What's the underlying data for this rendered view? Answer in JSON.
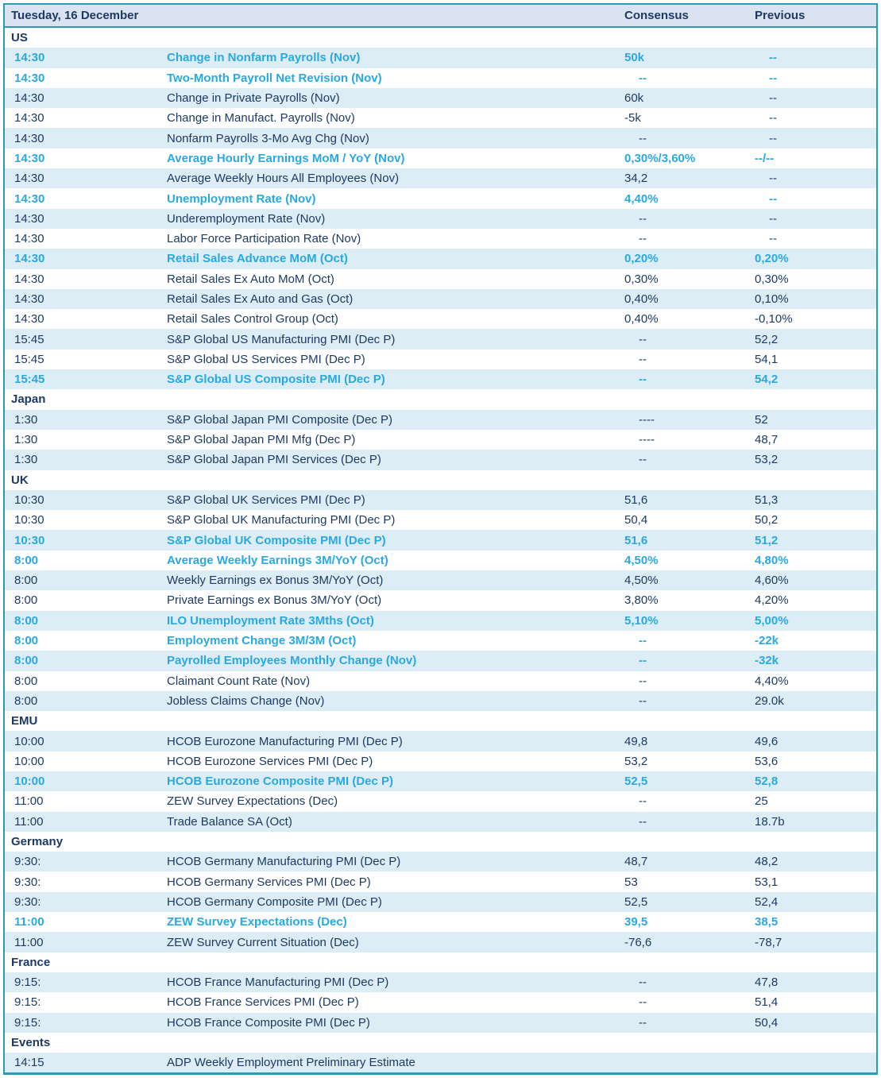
{
  "header": {
    "title": "Tuesday, 16 December",
    "consensus_label": "Consensus",
    "previous_label": "Previous"
  },
  "colors": {
    "text_navy": "#1e3a63",
    "highlight_cyan": "#2aa9e0",
    "border_teal": "#2c9ab5",
    "stripe_blue": "#dcedf5",
    "header_bg": "#dae3f0"
  },
  "sections": [
    {
      "name": "US",
      "rows": [
        {
          "time": "14:30",
          "event": "Change in Nonfarm Payrolls (Nov)",
          "consensus": "50k",
          "previous": "--",
          "highlight": true
        },
        {
          "time": "14:30",
          "event": "Two-Month Payroll Net Revision (Nov)",
          "consensus": "--",
          "previous": "--",
          "highlight": true
        },
        {
          "time": "14:30",
          "event": "Change in Private Payrolls (Nov)",
          "consensus": "60k",
          "previous": "--",
          "highlight": false
        },
        {
          "time": "14:30",
          "event": "Change in Manufact. Payrolls (Nov)",
          "consensus": "-5k",
          "previous": "--",
          "highlight": false
        },
        {
          "time": "14:30",
          "event": "Nonfarm Payrolls 3-Mo Avg Chg (Nov)",
          "consensus": "--",
          "previous": "--",
          "highlight": false
        },
        {
          "time": "14:30",
          "event": "Average Hourly Earnings MoM / YoY (Nov)",
          "consensus": "0,30%/3,60%",
          "previous": "--/--",
          "highlight": true
        },
        {
          "time": "14:30",
          "event": "Average Weekly Hours All Employees (Nov)",
          "consensus": "34,2",
          "previous": "--",
          "highlight": false
        },
        {
          "time": "14:30",
          "event": "Unemployment Rate (Nov)",
          "consensus": "4,40%",
          "previous": "--",
          "highlight": true
        },
        {
          "time": "14:30",
          "event": "Underemployment Rate (Nov)",
          "consensus": "--",
          "previous": "--",
          "highlight": false
        },
        {
          "time": "14:30",
          "event": "Labor Force Participation Rate (Nov)",
          "consensus": "--",
          "previous": "--",
          "highlight": false
        },
        {
          "time": "14:30",
          "event": "Retail Sales Advance MoM (Oct)",
          "consensus": "0,20%",
          "previous": "0,20%",
          "highlight": true
        },
        {
          "time": "14:30",
          "event": "Retail Sales Ex Auto MoM (Oct)",
          "consensus": "0,30%",
          "previous": "0,30%",
          "highlight": false
        },
        {
          "time": "14:30",
          "event": "Retail Sales Ex Auto and Gas (Oct)",
          "consensus": "0,40%",
          "previous": "0,10%",
          "highlight": false
        },
        {
          "time": "14:30",
          "event": "Retail Sales Control Group (Oct)",
          "consensus": "0,40%",
          "previous": "-0,10%",
          "highlight": false
        },
        {
          "time": "15:45",
          "event": "S&P Global US Manufacturing PMI (Dec P)",
          "consensus": "--",
          "previous": "52,2",
          "highlight": false
        },
        {
          "time": "15:45",
          "event": "S&P Global US Services PMI (Dec P)",
          "consensus": "--",
          "previous": "54,1",
          "highlight": false
        },
        {
          "time": "15:45",
          "event": "S&P Global US Composite PMI (Dec P)",
          "consensus": "--",
          "previous": "54,2",
          "highlight": true
        }
      ]
    },
    {
      "name": "Japan",
      "rows": [
        {
          "time": "1:30",
          "event": "S&P Global Japan PMI Composite (Dec P)",
          "consensus": "----",
          "previous": "52",
          "highlight": false
        },
        {
          "time": "1:30",
          "event": "S&P Global Japan PMI Mfg (Dec P)",
          "consensus": "----",
          "previous": "48,7",
          "highlight": false
        },
        {
          "time": "1:30",
          "event": "S&P Global Japan PMI Services (Dec P)",
          "consensus": "--",
          "previous": "53,2",
          "highlight": false
        }
      ]
    },
    {
      "name": "UK",
      "rows": [
        {
          "time": "10:30",
          "event": "S&P Global UK Services PMI (Dec P)",
          "consensus": "51,6",
          "previous": "51,3",
          "highlight": false
        },
        {
          "time": "10:30",
          "event": "S&P Global UK Manufacturing PMI (Dec P)",
          "consensus": "50,4",
          "previous": "50,2",
          "highlight": false
        },
        {
          "time": "10:30",
          "event": "S&P Global UK Composite PMI (Dec P)",
          "consensus": "51,6",
          "previous": "51,2",
          "highlight": true
        },
        {
          "time": "8:00",
          "event": "Average Weekly Earnings 3M/YoY (Oct)",
          "consensus": "4,50%",
          "previous": "4,80%",
          "highlight": true
        },
        {
          "time": "8:00",
          "event": "Weekly Earnings ex Bonus 3M/YoY (Oct)",
          "consensus": "4,50%",
          "previous": "4,60%",
          "highlight": false
        },
        {
          "time": "8:00",
          "event": "Private Earnings ex Bonus 3M/YoY (Oct)",
          "consensus": "3,80%",
          "previous": "4,20%",
          "highlight": false
        },
        {
          "time": "8:00",
          "event": "ILO Unemployment Rate 3Mths (Oct)",
          "consensus": "5,10%",
          "previous": "5,00%",
          "highlight": true
        },
        {
          "time": "8:00",
          "event": "Employment Change 3M/3M (Oct)",
          "consensus": "--",
          "previous": "-22k",
          "highlight": true
        },
        {
          "time": "8:00",
          "event": "Payrolled Employees Monthly Change (Nov)",
          "consensus": "--",
          "previous": "-32k",
          "highlight": true
        },
        {
          "time": "8:00",
          "event": "Claimant Count Rate (Nov)",
          "consensus": "--",
          "previous": "4,40%",
          "highlight": false
        },
        {
          "time": "8:00",
          "event": "Jobless Claims Change (Nov)",
          "consensus": "--",
          "previous": "29.0k",
          "highlight": false
        }
      ]
    },
    {
      "name": "EMU",
      "rows": [
        {
          "time": "10:00",
          "event": "HCOB Eurozone Manufacturing PMI (Dec P)",
          "consensus": "49,8",
          "previous": "49,6",
          "highlight": false
        },
        {
          "time": "10:00",
          "event": "HCOB Eurozone Services PMI (Dec P)",
          "consensus": "53,2",
          "previous": "53,6",
          "highlight": false
        },
        {
          "time": "10:00",
          "event": "HCOB Eurozone Composite PMI (Dec P)",
          "consensus": "52,5",
          "previous": "52,8",
          "highlight": true
        },
        {
          "time": "11:00",
          "event": "ZEW Survey Expectations (Dec)",
          "consensus": "--",
          "previous": "25",
          "highlight": false
        },
        {
          "time": "11:00",
          "event": "Trade Balance SA (Oct)",
          "consensus": "--",
          "previous": "18.7b",
          "highlight": false
        }
      ]
    },
    {
      "name": "Germany",
      "rows": [
        {
          "time": "9:30:",
          "event": "HCOB Germany Manufacturing PMI (Dec P)",
          "consensus": "48,7",
          "previous": "48,2",
          "highlight": false
        },
        {
          "time": "9:30:",
          "event": "HCOB Germany Services PMI (Dec P)",
          "consensus": "53",
          "previous": "53,1",
          "highlight": false
        },
        {
          "time": "9:30:",
          "event": "HCOB Germany Composite PMI (Dec P)",
          "consensus": "52,5",
          "previous": "52,4",
          "highlight": false
        },
        {
          "time": "11:00",
          "event": "ZEW Survey Expectations (Dec)",
          "consensus": "39,5",
          "previous": "38,5",
          "highlight": true
        },
        {
          "time": "11:00",
          "event": "ZEW Survey Current Situation (Dec)",
          "consensus": "-76,6",
          "previous": "-78,7",
          "highlight": false
        }
      ]
    },
    {
      "name": "France",
      "rows": [
        {
          "time": "9:15:",
          "event": "HCOB France Manufacturing PMI (Dec P)",
          "consensus": "--",
          "previous": "47,8",
          "highlight": false
        },
        {
          "time": "9:15:",
          "event": "HCOB France Services PMI (Dec P)",
          "consensus": "--",
          "previous": "51,4",
          "highlight": false
        },
        {
          "time": "9:15:",
          "event": "HCOB France Composite PMI (Dec P)",
          "consensus": "--",
          "previous": "50,4",
          "highlight": false
        }
      ]
    },
    {
      "name": "Events",
      "rows": [
        {
          "time": "14:15",
          "event": "ADP Weekly Employment Preliminary Estimate",
          "consensus": "",
          "previous": "",
          "highlight": false
        }
      ]
    }
  ]
}
